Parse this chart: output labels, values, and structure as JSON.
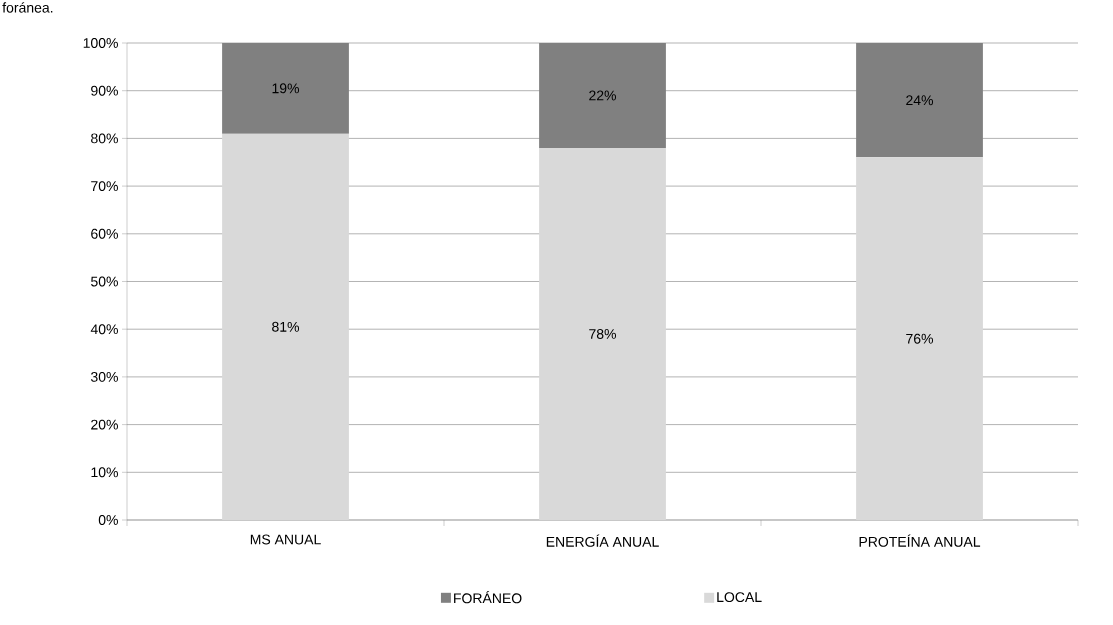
{
  "chart_data": {
    "type": "bar",
    "stacked": true,
    "annotations": [
      "foránea."
    ],
    "categories": [
      "MS ANUAL",
      "ENERGÍA ANUAL",
      "PROTEÍNA ANUAL"
    ],
    "series": [
      {
        "name": "LOCAL",
        "color": "#d9d9d9",
        "values": [
          81,
          78,
          76
        ],
        "value_labels": [
          "81%",
          "78%",
          "76%"
        ]
      },
      {
        "name": "FORÁNEO",
        "color": "#808080",
        "values": [
          19,
          22,
          24
        ],
        "value_labels": [
          "19%",
          "22%",
          "24%"
        ]
      }
    ],
    "ylim": [
      0,
      100
    ],
    "yticks": [
      {
        "value": 0,
        "label": "0%"
      },
      {
        "value": 10,
        "label": "10%"
      },
      {
        "value": 20,
        "label": "20%"
      },
      {
        "value": 30,
        "label": "30%"
      },
      {
        "value": 40,
        "label": "40%"
      },
      {
        "value": 50,
        "label": "50%"
      },
      {
        "value": 60,
        "label": "60%"
      },
      {
        "value": 70,
        "label": "70%"
      },
      {
        "value": 80,
        "label": "80%"
      },
      {
        "value": 90,
        "label": "90%"
      },
      {
        "value": 100,
        "label": "100%"
      }
    ],
    "grid": "y",
    "legend": "bottom"
  }
}
